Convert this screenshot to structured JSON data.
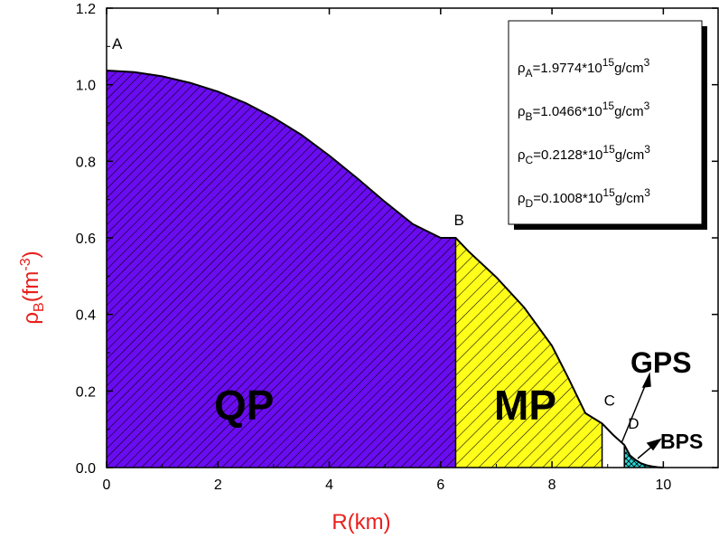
{
  "chart_data": {
    "type": "area",
    "xlabel": "R(km)",
    "ylabel_main": "ρ",
    "ylabel_sub": "B",
    "ylabel_unit_open": "(fm",
    "ylabel_unit_sup": "-3",
    "ylabel_unit_close": ")",
    "xlim": [
      0,
      11
    ],
    "ylim": [
      0,
      1.2
    ],
    "x_ticks": [
      0,
      2,
      4,
      6,
      8,
      10
    ],
    "x_tick_labels": [
      "0",
      "2",
      "4",
      "6",
      "8",
      "10"
    ],
    "y_ticks": [
      0,
      0.2,
      0.4,
      0.6,
      0.8,
      1.0,
      1.2
    ],
    "y_tick_labels": [
      "0.0",
      "0.2",
      "0.4",
      "0.6",
      "0.8",
      "1.0",
      "1.2"
    ],
    "curve": {
      "x": [
        0,
        0.5,
        1.0,
        1.5,
        2.0,
        2.5,
        3.0,
        3.5,
        4.0,
        4.5,
        5.0,
        5.5,
        6.0,
        6.27,
        6.5,
        7.0,
        7.5,
        8.0,
        8.3,
        8.6,
        8.9,
        9.1,
        9.3,
        9.4,
        9.5,
        9.6,
        9.7,
        9.8,
        9.9,
        10.0
      ],
      "y": [
        1.037,
        1.033,
        1.022,
        1.005,
        0.982,
        0.952,
        0.914,
        0.869,
        0.815,
        0.756,
        0.694,
        0.636,
        0.6,
        0.6,
        0.565,
        0.497,
        0.418,
        0.318,
        0.232,
        0.142,
        0.115,
        0.085,
        0.059,
        0.032,
        0.02,
        0.011,
        0.006,
        0.003,
        0.001,
        0.0
      ]
    },
    "regions": [
      {
        "name": "QP",
        "x_start": 0,
        "x_end": 6.27,
        "color": "#6a0cf0"
      },
      {
        "name": "MP",
        "x_start": 6.27,
        "x_end": 8.9,
        "color": "#ffff1a"
      },
      {
        "name": "GPS",
        "x_start": 8.9,
        "x_end": 9.3,
        "color": "#ffffff"
      },
      {
        "name": "BPS",
        "x_start": 9.3,
        "x_end": 10.0,
        "color": "#29d6d6"
      }
    ],
    "points": [
      {
        "label": "A",
        "x": 0,
        "y": 1.037
      },
      {
        "label": "B",
        "x": 6.27,
        "y": 0.6
      },
      {
        "label": "C",
        "x": 8.9,
        "y": 0.115
      },
      {
        "label": "D",
        "x": 9.3,
        "y": 0.059
      }
    ],
    "region_labels": {
      "qp": "QP",
      "mp": "MP",
      "gps": "GPS",
      "bps": "BPS"
    },
    "legend": {
      "placement": "top-right",
      "entries": [
        {
          "sym": "ρ",
          "sub": "A",
          "text": "=1.9774*10",
          "sup": "15",
          "unit": "g/cm",
          "unit_sup": "3"
        },
        {
          "sym": "ρ",
          "sub": "B",
          "text": "=1.0466*10",
          "sup": "15",
          "unit": "g/cm",
          "unit_sup": "3"
        },
        {
          "sym": "ρ",
          "sub": "C",
          "text": "=0.2128*10",
          "sup": "15",
          "unit": "g/cm",
          "unit_sup": "3"
        },
        {
          "sym": "ρ",
          "sub": "D",
          "text": "=0.1008*10",
          "sup": "15",
          "unit": "g/cm",
          "unit_sup": "3"
        }
      ]
    },
    "colors": {
      "axis_title": "#e8201c",
      "hatch": "#000000"
    }
  }
}
